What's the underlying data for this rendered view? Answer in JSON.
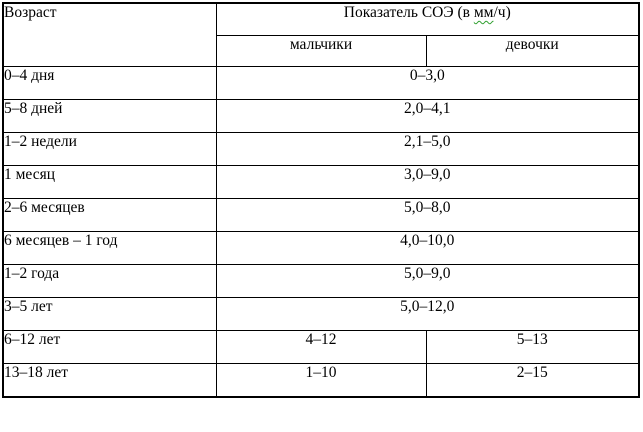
{
  "colors": {
    "border": "#000000",
    "text": "#000000",
    "page_background": "#ffffff",
    "spellcheck_squiggle": "#2e9e2e"
  },
  "table": {
    "header": {
      "age_label": "Возраст",
      "esr_title_prefix": "Показатель СОЭ (в ",
      "esr_title_misspelled": "мм",
      "esr_title_suffix": "/ч)",
      "boys_label": "мальчики",
      "girls_label": "девочки"
    },
    "rows": [
      {
        "age": "0–4 дня",
        "value": "0–3,0"
      },
      {
        "age": "5–8 дней",
        "value": "2,0–4,1"
      },
      {
        "age": "1–2 недели",
        "value": "2,1–5,0"
      },
      {
        "age": "1 месяц",
        "value": "3,0–9,0"
      },
      {
        "age": "2–6 месяцев",
        "value": "5,0–8,0"
      },
      {
        "age": "6 месяцев – 1 год",
        "value": "4,0–10,0"
      },
      {
        "age": "1–2 года",
        "value": "5,0–9,0"
      },
      {
        "age": "3–5 лет",
        "value": "5,0–12,0"
      },
      {
        "age": "6–12 лет",
        "boys": "4–12",
        "girls": "5–13"
      },
      {
        "age": "13–18 лет",
        "boys": "1–10",
        "girls": "2–15"
      }
    ]
  }
}
